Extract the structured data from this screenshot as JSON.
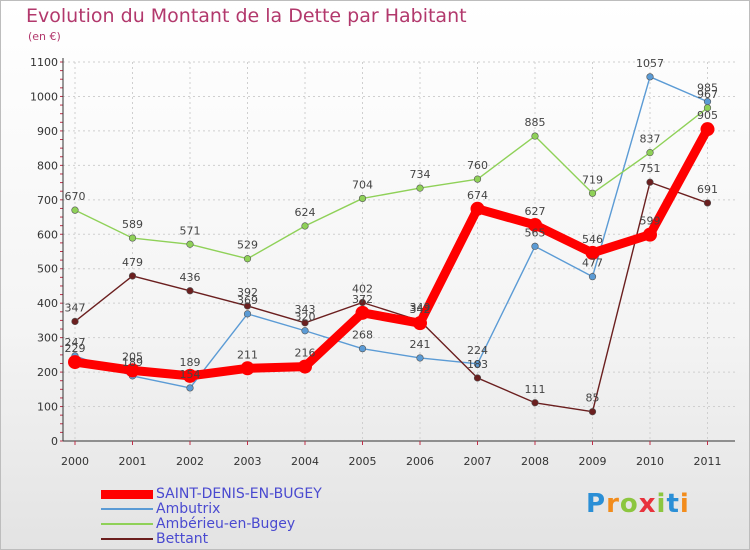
{
  "header": {
    "title": "Evolution du Montant de la Dette par Habitant",
    "subtitle": "(en €)"
  },
  "logo": {
    "letters": [
      "P",
      "r",
      "o",
      "x",
      "i",
      "t",
      "i"
    ],
    "colors": [
      "#2b8fd6",
      "#f28c1c",
      "#8cc63f",
      "#e8323c",
      "#8cc63f",
      "#2b8fd6",
      "#f28c1c"
    ]
  },
  "chart_data": {
    "type": "line",
    "categories": [
      "2000",
      "2001",
      "2002",
      "2003",
      "2004",
      "2005",
      "2006",
      "2007",
      "2008",
      "2009",
      "2010",
      "2011"
    ],
    "ylim": [
      0,
      1100
    ],
    "yticks": [
      0,
      100,
      200,
      300,
      400,
      500,
      600,
      700,
      800,
      900,
      1000,
      1100
    ],
    "grid": true,
    "legend_position": "bottom-left",
    "series": [
      {
        "name": "SAINT-DENIS-EN-BUGEY",
        "color": "#ff0000",
        "values": [
          229,
          205,
          189,
          211,
          216,
          372,
          342,
          674,
          627,
          546,
          599,
          905
        ]
      },
      {
        "name": "Ambutrix",
        "color": "#5b9bd5",
        "values": [
          247,
          189,
          154,
          369,
          320,
          268,
          241,
          224,
          565,
          477,
          1057,
          985
        ]
      },
      {
        "name": "Ambérieu-en-Bugey",
        "color": "#8fd158",
        "values": [
          670,
          589,
          571,
          529,
          624,
          704,
          734,
          760,
          885,
          719,
          837,
          967
        ]
      },
      {
        "name": "Bettant",
        "color": "#6b1f1f",
        "values": [
          347,
          479,
          436,
          392,
          343,
          402,
          349,
          183,
          111,
          85,
          751,
          691
        ]
      }
    ]
  }
}
